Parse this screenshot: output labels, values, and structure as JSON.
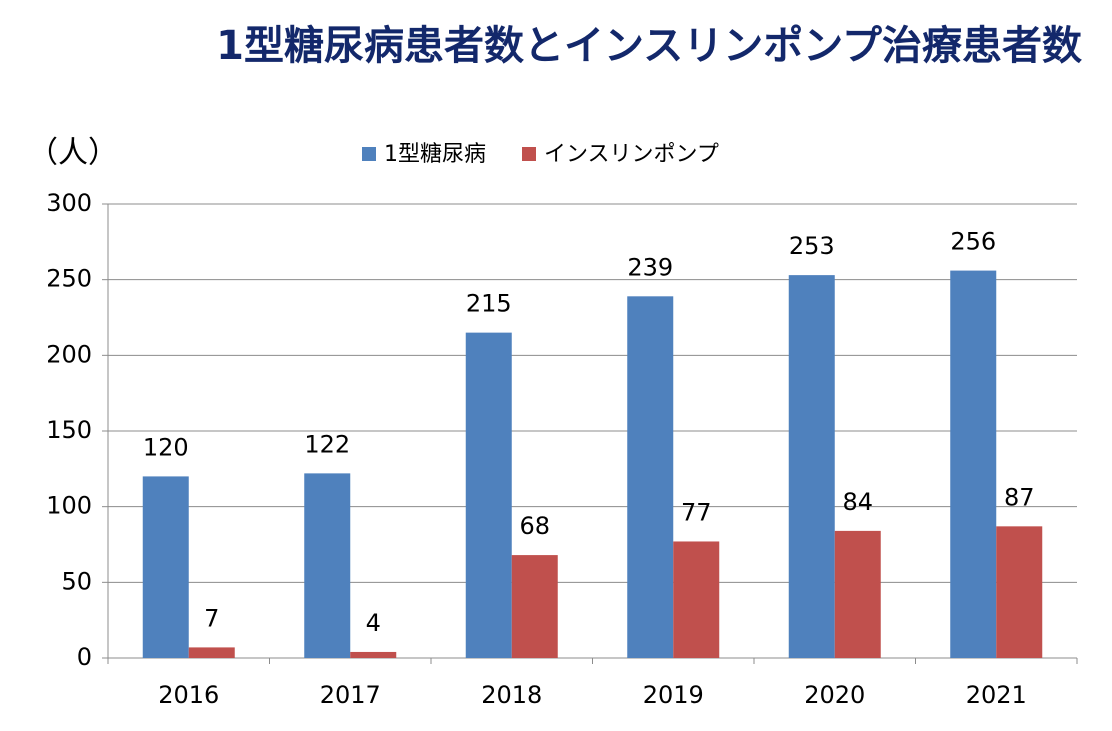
{
  "chart_data": {
    "type": "bar",
    "title": "1型糖尿病患者数とインスリンポンプ治療患者数",
    "ylabel": "（人）",
    "categories": [
      "2016",
      "2017",
      "2018",
      "2019",
      "2020",
      "2021"
    ],
    "series": [
      {
        "name": "1型糖尿病",
        "color": "#4f81bd",
        "values": [
          120,
          122,
          215,
          239,
          253,
          256
        ]
      },
      {
        "name": "インスリンポンプ",
        "color": "#c0504d",
        "values": [
          7,
          4,
          68,
          77,
          84,
          87
        ]
      }
    ],
    "ylim": [
      0,
      300
    ],
    "yticks": [
      0,
      50,
      100,
      150,
      200,
      250,
      300
    ],
    "grid": true,
    "legend": "top"
  }
}
